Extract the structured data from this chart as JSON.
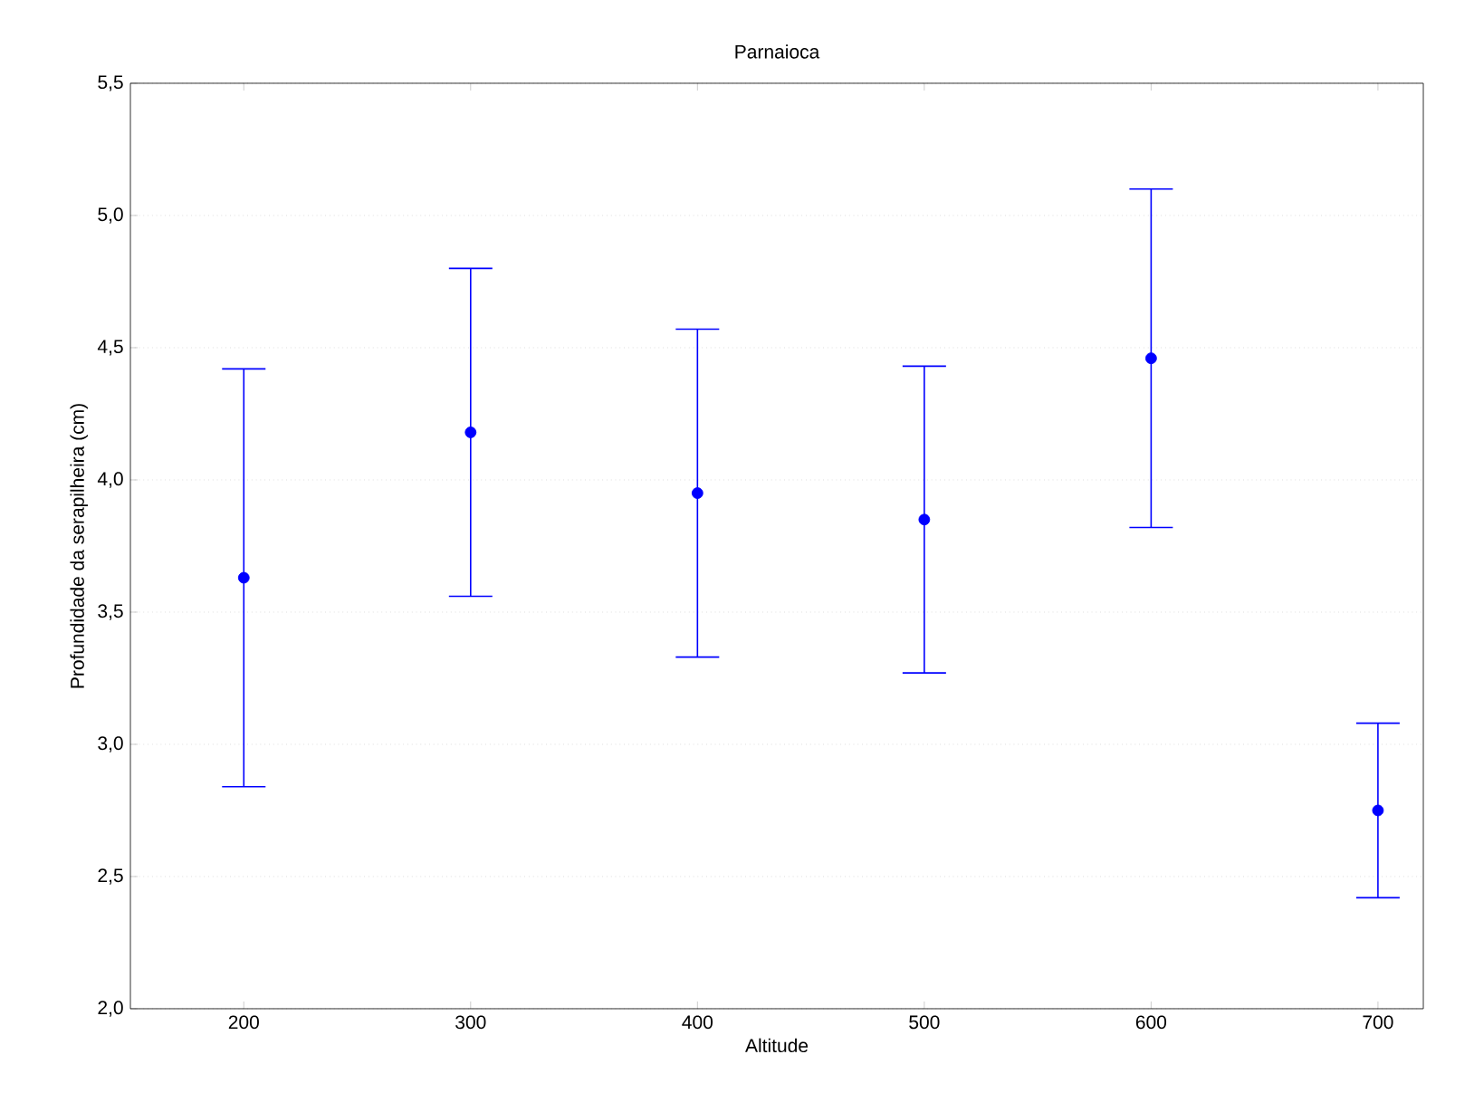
{
  "chart_data": {
    "type": "scatter",
    "title": "Parnaioca",
    "xlabel": "Altitude",
    "ylabel": "Profundidade da serapilheira (cm)",
    "x": [
      200,
      300,
      400,
      500,
      600,
      700
    ],
    "series": [
      {
        "color": "#0000ff",
        "values": [
          3.63,
          4.18,
          3.95,
          3.85,
          4.46,
          2.75
        ],
        "errors": [
          0.79,
          0.62,
          0.62,
          0.58,
          0.64,
          0.33
        ]
      }
    ],
    "xlim": [
      150,
      720
    ],
    "xticks": [
      200,
      300,
      400,
      500,
      600,
      700
    ],
    "ylim": [
      2.0,
      5.5
    ],
    "yticks": [
      {
        "value": 2.0,
        "label": "2,0"
      },
      {
        "value": 2.5,
        "label": "2,5"
      },
      {
        "value": 3.0,
        "label": "3,0"
      },
      {
        "value": 3.5,
        "label": "3,5"
      },
      {
        "value": 4.0,
        "label": "4,0"
      },
      {
        "value": 4.5,
        "label": "4,5"
      },
      {
        "value": 5.0,
        "label": "5,0"
      },
      {
        "value": 5.5,
        "label": "5,5"
      }
    ],
    "grid": "y",
    "marker": "circle",
    "line_style": "none"
  }
}
